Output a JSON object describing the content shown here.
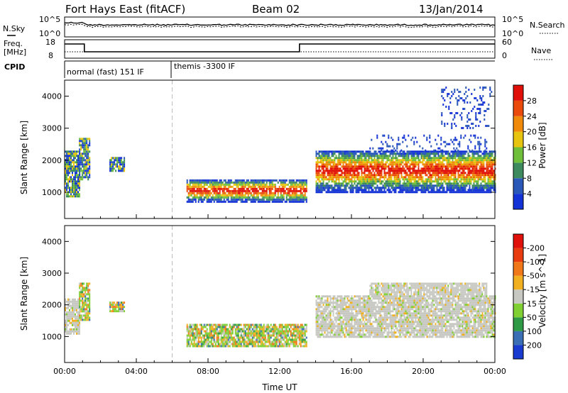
{
  "header": {
    "station": "Fort Hays East (fitACF)",
    "beam": "Beam 02",
    "date": "13/Jan/2014"
  },
  "top_panels": {
    "nsky": {
      "label": "N.Sky",
      "right_label": "N.Search",
      "left_ticks": [
        "10^5",
        "10^0"
      ],
      "right_ticks": [
        "10^5",
        "10^0"
      ]
    },
    "freq": {
      "label_line1": "Freq.",
      "label_line2": "[MHz]",
      "right_label": "Nave",
      "left_ticks": [
        "18",
        "8"
      ],
      "right_ticks": [
        "60",
        "0"
      ]
    },
    "cpid": {
      "label": "CPID",
      "segments": [
        "normal (fast) 151 IF",
        "themis -3300 IF"
      ]
    }
  },
  "chart_data": [
    {
      "type": "heatmap",
      "name": "power-panel",
      "xlabel": "",
      "ylabel": "Slant Range [km]",
      "xlim": [
        0,
        24
      ],
      "ylim": [
        180,
        4500
      ],
      "yticks": [
        "1000",
        "2000",
        "3000",
        "4000"
      ],
      "colorbar": {
        "label": "Power [dB]",
        "ticks": [
          "4",
          "8",
          "12",
          "16",
          "20",
          "24",
          "28"
        ],
        "colors": [
          "#1433d6",
          "#2a58b8",
          "#3d8a5e",
          "#6fbf3a",
          "#e7c40f",
          "#f08a0a",
          "#ea4a0b",
          "#e01008"
        ]
      },
      "echo_regions": [
        {
          "t_start": 0.0,
          "t_end": 0.8,
          "range_low": 900,
          "range_high": 2300,
          "level": "mixed"
        },
        {
          "t_start": 0.8,
          "t_end": 1.4,
          "range_low": 1400,
          "range_high": 2700,
          "level": "mixed"
        },
        {
          "t_start": 2.5,
          "t_end": 3.3,
          "range_low": 1700,
          "range_high": 2100,
          "level": "mixed"
        },
        {
          "t_start": 6.8,
          "t_end": 13.5,
          "range_low": 700,
          "range_high": 1400,
          "level": "strong"
        },
        {
          "t_start": 14.0,
          "t_end": 24.0,
          "range_low": 1000,
          "range_high": 2300,
          "level": "strong"
        },
        {
          "t_start": 17.0,
          "t_end": 23.5,
          "range_low": 2300,
          "range_high": 2800,
          "level": "weak"
        },
        {
          "t_start": 21.0,
          "t_end": 23.8,
          "range_low": 3000,
          "range_high": 4300,
          "level": "weak"
        }
      ]
    },
    {
      "type": "heatmap",
      "name": "velocity-panel",
      "xlabel": "Time UT",
      "ylabel": "Slant Range [km]",
      "xlim": [
        0,
        24
      ],
      "ylim": [
        180,
        4500
      ],
      "xticks": [
        "00:00",
        "04:00",
        "08:00",
        "12:00",
        "16:00",
        "20:00",
        "00:00"
      ],
      "yticks": [
        "1000",
        "2000",
        "3000",
        "4000"
      ],
      "colorbar": {
        "label": "Velocity [m s^-1]",
        "ticks": [
          "200",
          "100",
          "50",
          "15",
          "-15",
          "-50",
          "-100",
          "-200"
        ],
        "colors": [
          "#1a3bd0",
          "#3a6eb5",
          "#2f9a46",
          "#80d034",
          "#c8c8c2",
          "#f0b020",
          "#f07818",
          "#e83c10",
          "#e0100a"
        ]
      },
      "echo_regions": [
        {
          "t_start": 0.0,
          "t_end": 0.8,
          "range_low": 1100,
          "range_high": 2200,
          "level": "ground-scatter"
        },
        {
          "t_start": 0.8,
          "t_end": 1.4,
          "range_low": 1500,
          "range_high": 2700,
          "level": "mixed"
        },
        {
          "t_start": 2.5,
          "t_end": 3.3,
          "range_low": 1800,
          "range_high": 2100,
          "level": "mixed"
        },
        {
          "t_start": 6.8,
          "t_end": 13.5,
          "range_low": 700,
          "range_high": 1400,
          "level": "mixed"
        },
        {
          "t_start": 14.0,
          "t_end": 24.0,
          "range_low": 1000,
          "range_high": 2300,
          "level": "ground-scatter"
        },
        {
          "t_start": 17.0,
          "t_end": 23.5,
          "range_low": 2300,
          "range_high": 2700,
          "level": "ground-scatter"
        }
      ]
    }
  ],
  "colors": {
    "frame": "#000000",
    "dashed_marker": "#bdbdbd"
  }
}
